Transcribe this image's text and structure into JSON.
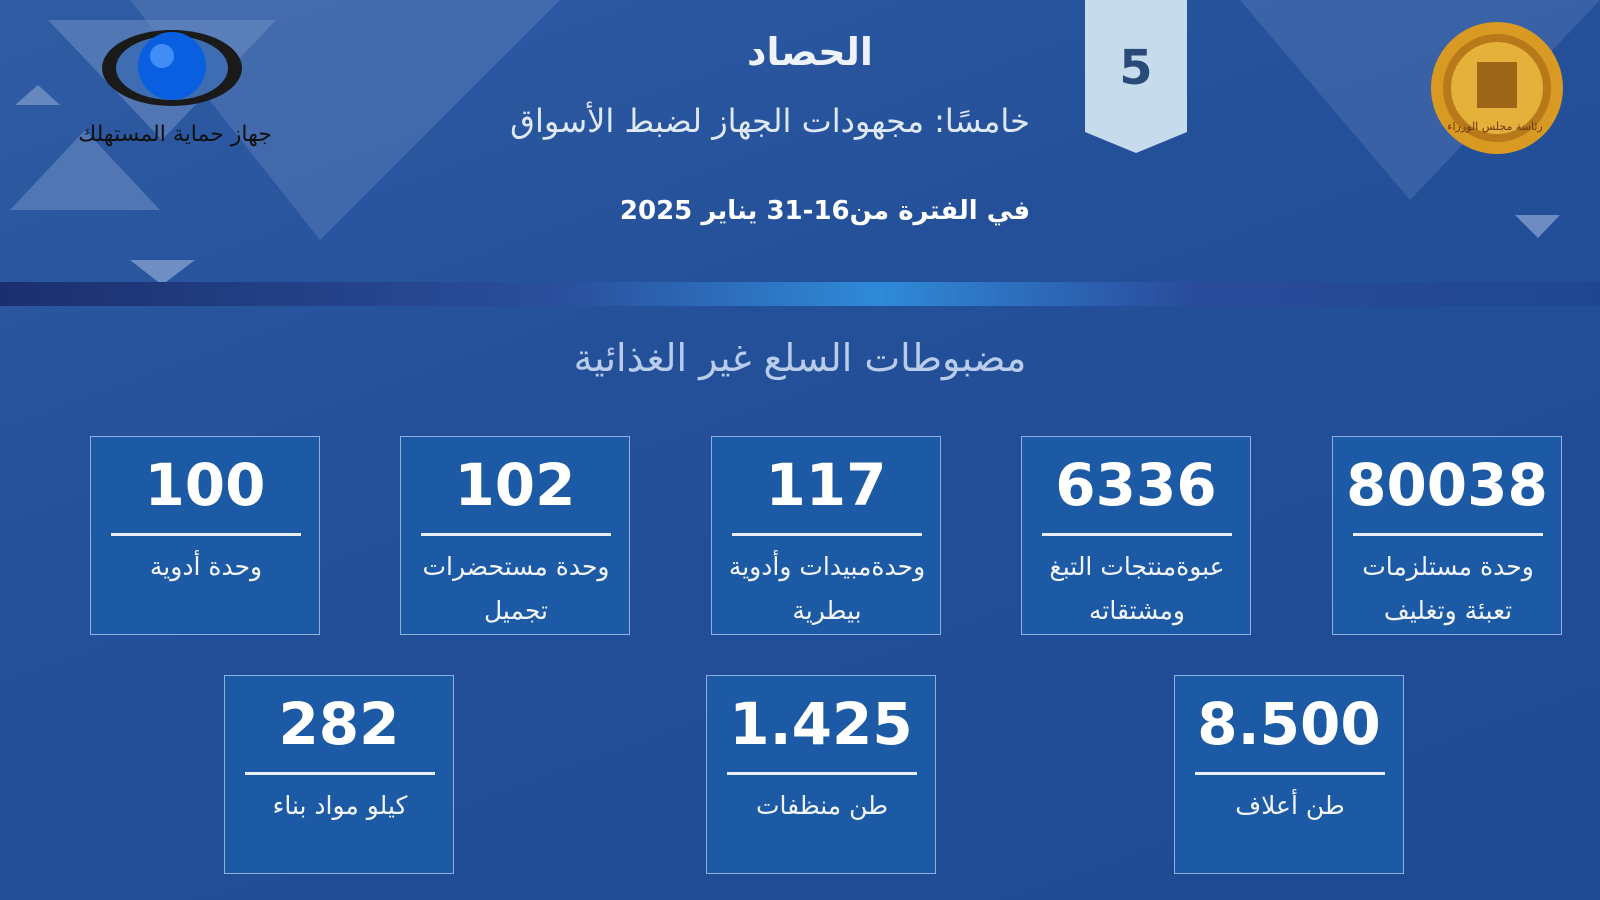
{
  "header": {
    "title": "الحصاد",
    "subtitle": "خامسًا: مجهودات الجهاز لضبط الأسواق",
    "period": "في الفترة من16-31 يناير 2025",
    "section_number": "5"
  },
  "logo_left": {
    "text": "جهاز حماية المستهلك"
  },
  "logo_right": {
    "text": "رئاسة مجلس الوزراء"
  },
  "section_title": "مضبوطات السلع غير الغذائية",
  "cards": [
    {
      "value": "80038",
      "label": "وحدة مستلزمات تعبئة وتغليف"
    },
    {
      "value": "6336",
      "label": "عبوةمنتجات التبغ ومشتقاته"
    },
    {
      "value": "117",
      "label": "وحدةمبيدات وأدوية بيطرية"
    },
    {
      "value": "102",
      "label": "وحدة مستحضرات تجميل"
    },
    {
      "value": "100",
      "label": "وحدة أدوية"
    },
    {
      "value": "8.500",
      "label": "طن أعلاف"
    },
    {
      "value": "1.425",
      "label": "طن منظفات"
    },
    {
      "value": "282",
      "label": "كيلو مواد بناء"
    }
  ]
}
